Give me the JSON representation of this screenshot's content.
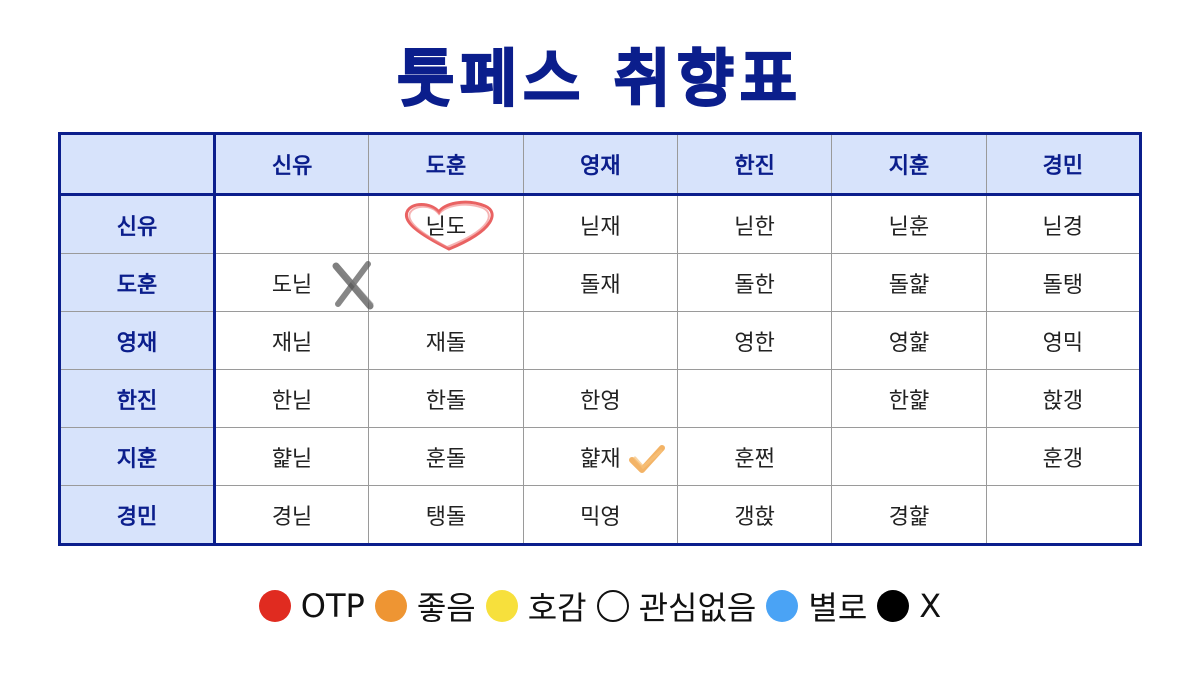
{
  "title": "툿페스 취향표",
  "columns": [
    "신유",
    "도훈",
    "영재",
    "한진",
    "지훈",
    "경민"
  ],
  "rows": [
    {
      "label": "신유",
      "cells": [
        "",
        "닏도",
        "닏재",
        "닏한",
        "닏훈",
        "닏경"
      ]
    },
    {
      "label": "도훈",
      "cells": [
        "도닏",
        "",
        "돌재",
        "돌한",
        "돌햝",
        "돌탱"
      ]
    },
    {
      "label": "영재",
      "cells": [
        "재닏",
        "재돌",
        "",
        "영한",
        "영햝",
        "영믹"
      ]
    },
    {
      "label": "한진",
      "cells": [
        "한닏",
        "한돌",
        "한영",
        "",
        "한햝",
        "핝갱"
      ]
    },
    {
      "label": "지훈",
      "cells": [
        "햝닏",
        "훈돌",
        "햝재",
        "훈쩐",
        "",
        "훈갱"
      ]
    },
    {
      "label": "경민",
      "cells": [
        "경닏",
        "탱돌",
        "믹영",
        "갱핝",
        "경햝",
        ""
      ]
    }
  ],
  "legend": [
    {
      "label": "OTP",
      "color": "#e02b20"
    },
    {
      "label": "좋음",
      "color": "#ee9533"
    },
    {
      "label": "호감",
      "color": "#f7e03c"
    },
    {
      "label": "관심없음",
      "color": "#ffffff"
    },
    {
      "label": "별로",
      "color": "#4aa3f5"
    },
    {
      "label": "X",
      "color": "#000000"
    }
  ],
  "annotations": [
    {
      "row": 0,
      "col": 1,
      "icon": "heart-icon",
      "color": "#e33b3b"
    },
    {
      "row": 1,
      "col": 0,
      "icon": "x-mark-icon",
      "color": "#555555"
    },
    {
      "row": 4,
      "col": 2,
      "icon": "checkmark-icon",
      "color": "#f0a040"
    }
  ]
}
